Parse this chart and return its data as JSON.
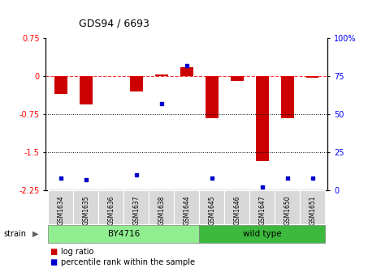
{
  "title": "GDS94 / 6693",
  "samples": [
    "GSM1634",
    "GSM1635",
    "GSM1636",
    "GSM1637",
    "GSM1638",
    "GSM1644",
    "GSM1645",
    "GSM1646",
    "GSM1647",
    "GSM1650",
    "GSM1651"
  ],
  "log_ratio": [
    -0.35,
    -0.55,
    0.0,
    -0.3,
    0.04,
    0.18,
    -0.82,
    -0.1,
    -1.68,
    -0.82,
    -0.03
  ],
  "percentile_rank": [
    8,
    7,
    null,
    10,
    57,
    82,
    8,
    null,
    2,
    8,
    8
  ],
  "by4716_indices": [
    0,
    1,
    2,
    3,
    4,
    5
  ],
  "wildtype_indices": [
    6,
    7,
    8,
    9,
    10
  ],
  "ylim_left": [
    -2.25,
    0.75
  ],
  "ylim_right": [
    0,
    100
  ],
  "yticks_left": [
    0.75,
    0,
    -0.75,
    -1.5,
    -2.25
  ],
  "yticks_right": [
    100,
    75,
    50,
    25,
    0
  ],
  "bar_color": "#cc0000",
  "dot_color": "#0000cc",
  "bar_width": 0.5,
  "dotted_lines": [
    -0.75,
    -1.5
  ],
  "by4716_color": "#90ee90",
  "wildtype_color": "#3dba3d",
  "strain_label": "strain",
  "legend_items": [
    {
      "label": "log ratio",
      "color": "#cc0000"
    },
    {
      "label": "percentile rank within the sample",
      "color": "#0000cc"
    }
  ]
}
